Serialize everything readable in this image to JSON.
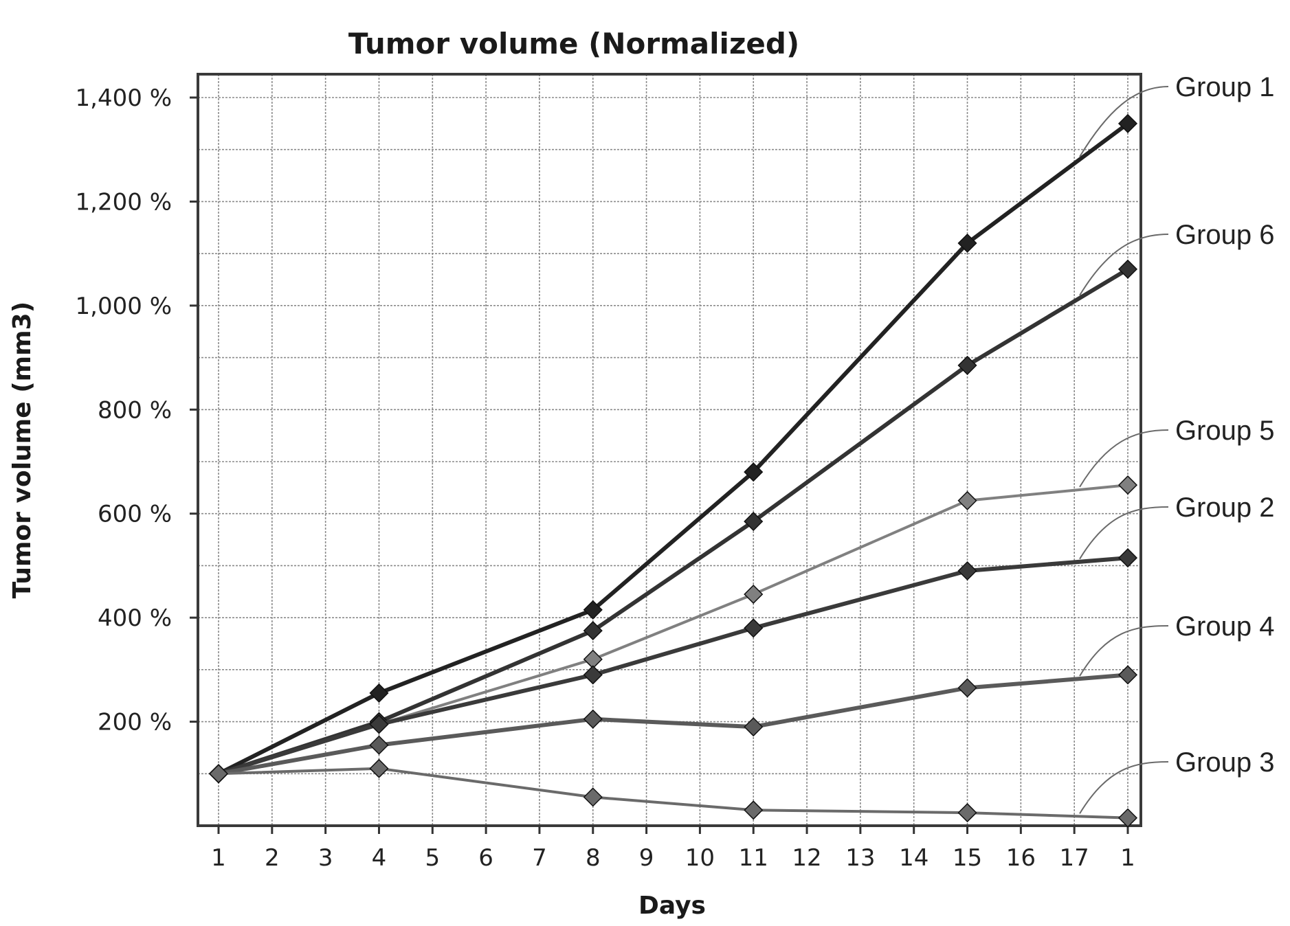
{
  "chart_data": {
    "type": "line",
    "title": "Tumor volume (Normalized)",
    "xlabel": "Days",
    "ylabel": "Tumor volume (mm3)",
    "x_ticks": [
      "1",
      "2",
      "3",
      "4",
      "5",
      "6",
      "7",
      "8",
      "9",
      "10",
      "11",
      "12",
      "13",
      "14",
      "15",
      "16",
      "17",
      "1"
    ],
    "x_range": [
      1,
      18
    ],
    "y_ticks": [
      "1,400 %",
      "1,200 %",
      "1,000 %",
      "800 %",
      "600 %",
      "400 %",
      "200 %"
    ],
    "y_tick_values": [
      1400,
      1200,
      1000,
      800,
      600,
      400,
      200
    ],
    "ylim": [
      0,
      1400
    ],
    "grid": true,
    "legend": "direct labels on right",
    "series": [
      {
        "name": "Group 1",
        "color": "#222222",
        "x": [
          1,
          4,
          8,
          11,
          15,
          18
        ],
        "values": [
          100,
          255,
          415,
          680,
          1120,
          1350
        ]
      },
      {
        "name": "Group 6",
        "color": "#333333",
        "x": [
          1,
          4,
          8,
          11,
          15,
          18
        ],
        "values": [
          100,
          200,
          375,
          585,
          885,
          1070
        ]
      },
      {
        "name": "Group 5",
        "color": "#808080",
        "x": [
          1,
          4,
          8,
          11,
          15,
          18
        ],
        "values": [
          100,
          195,
          320,
          445,
          625,
          655
        ]
      },
      {
        "name": "Group 2",
        "color": "#3a3a3a",
        "x": [
          1,
          4,
          8,
          11,
          15,
          18
        ],
        "values": [
          100,
          195,
          290,
          380,
          490,
          515
        ]
      },
      {
        "name": "Group 4",
        "color": "#5a5a5a",
        "x": [
          1,
          4,
          8,
          11,
          15,
          18
        ],
        "values": [
          100,
          155,
          205,
          190,
          265,
          290
        ]
      },
      {
        "name": "Group 3",
        "color": "#6a6a6a",
        "x": [
          1,
          4,
          8,
          11,
          15,
          18
        ],
        "values": [
          100,
          110,
          55,
          30,
          25,
          15
        ]
      }
    ]
  }
}
